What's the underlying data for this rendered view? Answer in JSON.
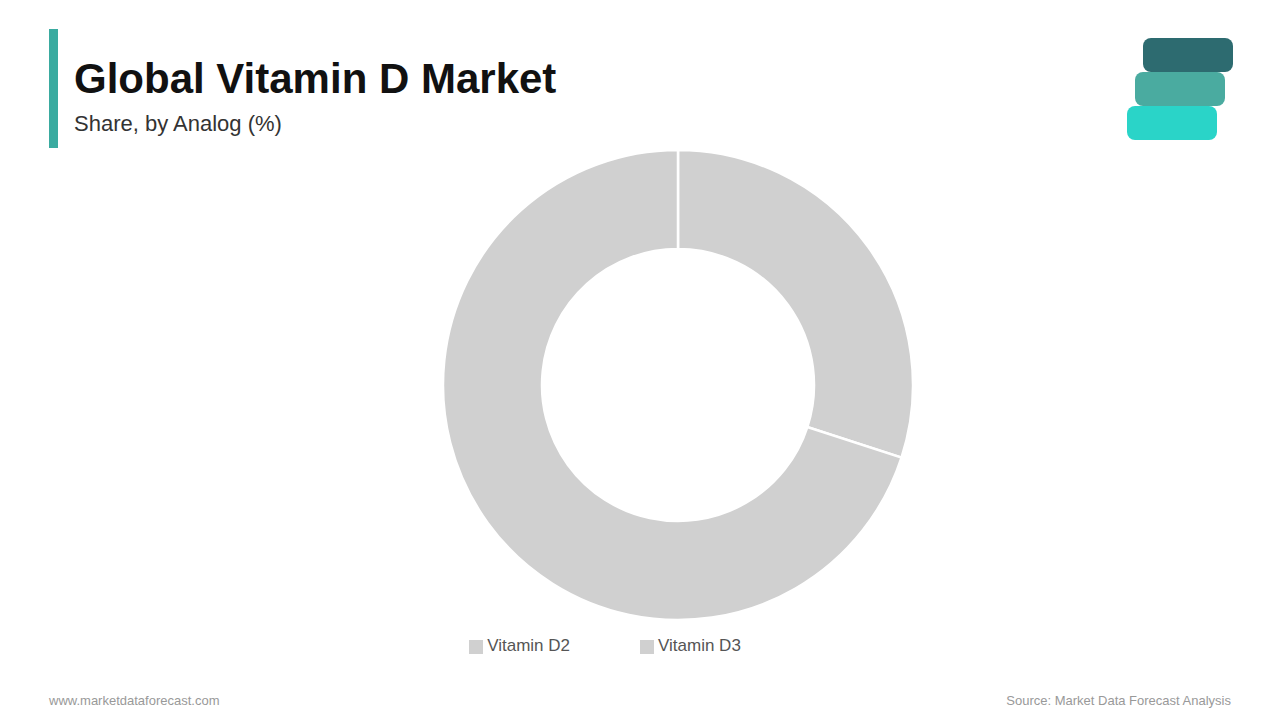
{
  "chart_data": {
    "type": "pie",
    "title": "Global Vitamin D Market",
    "subtitle": "Share, by Analog (%)",
    "categories": [
      "Vitamin D2",
      "Vitamin D3"
    ],
    "values": [
      30,
      70
    ],
    "colors": [
      "#d0d0d0",
      "#d0d0d0"
    ],
    "legend": "bottom",
    "annotations": [
      "www.marketdataforecast.com",
      "Source: Market Data Forecast Analysis"
    ]
  }
}
